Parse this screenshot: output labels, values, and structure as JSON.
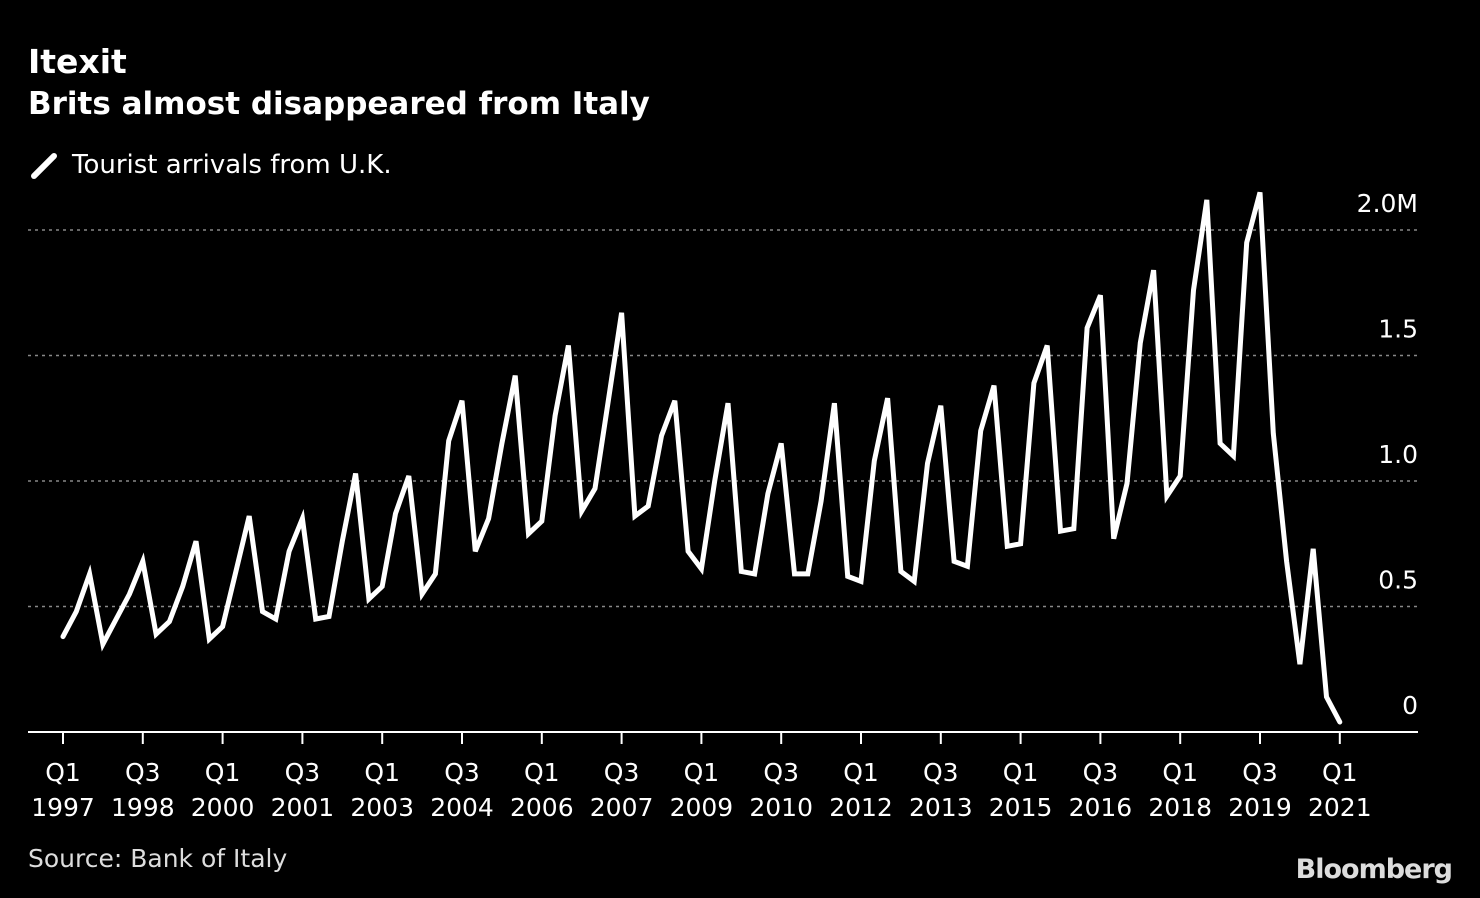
{
  "title": "Itexit",
  "subtitle": "Brits almost disappeared from Italy",
  "source": "Source: Bank of Italy",
  "brand": "Bloomberg",
  "colors": {
    "background": "#000000",
    "line": "#ffffff",
    "grid": "#888888"
  },
  "chart_data": {
    "type": "line",
    "title": "Itexit",
    "subtitle": "Brits almost disappeared from Italy",
    "legend": [
      "Tourist arrivals from U.K."
    ],
    "legend_position": "top-left",
    "xlabel": "",
    "ylabel": "",
    "unit": "M",
    "ylim": [
      0,
      2.0
    ],
    "y_ticks": [
      {
        "value": 2.0,
        "label": "2.0M"
      },
      {
        "value": 1.5,
        "label": "1.5"
      },
      {
        "value": 1.0,
        "label": "1.0"
      },
      {
        "value": 0.5,
        "label": "0.5"
      },
      {
        "value": 0.0,
        "label": "0"
      }
    ],
    "x_start": "1997 Q1",
    "x_ticks": [
      {
        "q": "Q1",
        "year": "1997",
        "index": 0
      },
      {
        "q": "Q3",
        "year": "1998",
        "index": 6
      },
      {
        "q": "Q1",
        "year": "2000",
        "index": 12
      },
      {
        "q": "Q3",
        "year": "2001",
        "index": 18
      },
      {
        "q": "Q1",
        "year": "2003",
        "index": 24
      },
      {
        "q": "Q3",
        "year": "2004",
        "index": 30
      },
      {
        "q": "Q1",
        "year": "2006",
        "index": 36
      },
      {
        "q": "Q3",
        "year": "2007",
        "index": 42
      },
      {
        "q": "Q1",
        "year": "2009",
        "index": 48
      },
      {
        "q": "Q3",
        "year": "2010",
        "index": 54
      },
      {
        "q": "Q1",
        "year": "2012",
        "index": 60
      },
      {
        "q": "Q3",
        "year": "2013",
        "index": 66
      },
      {
        "q": "Q1",
        "year": "2015",
        "index": 72
      },
      {
        "q": "Q3",
        "year": "2016",
        "index": 78
      },
      {
        "q": "Q1",
        "year": "2018",
        "index": 84
      },
      {
        "q": "Q3",
        "year": "2019",
        "index": 90
      },
      {
        "q": "Q1",
        "year": "2021",
        "index": 96
      }
    ],
    "series": [
      {
        "name": "Tourist arrivals from U.K.",
        "values": [
          0.38,
          0.48,
          0.63,
          0.35,
          0.45,
          0.55,
          0.68,
          0.39,
          0.44,
          0.58,
          0.76,
          0.37,
          0.42,
          0.64,
          0.86,
          0.48,
          0.45,
          0.72,
          0.85,
          0.45,
          0.46,
          0.76,
          1.03,
          0.53,
          0.58,
          0.87,
          1.02,
          0.55,
          0.63,
          1.16,
          1.32,
          0.72,
          0.85,
          1.15,
          1.42,
          0.79,
          0.84,
          1.26,
          1.54,
          0.88,
          0.97,
          1.32,
          1.67,
          0.86,
          0.9,
          1.18,
          1.32,
          0.72,
          0.65,
          1.0,
          1.31,
          0.64,
          0.63,
          0.95,
          1.15,
          0.63,
          0.63,
          0.92,
          1.31,
          0.62,
          0.6,
          1.08,
          1.33,
          0.64,
          0.6,
          1.07,
          1.3,
          0.68,
          0.66,
          1.2,
          1.38,
          0.74,
          0.75,
          1.39,
          1.54,
          0.8,
          0.81,
          1.61,
          1.74,
          0.77,
          0.99,
          1.55,
          1.84,
          0.94,
          1.02,
          1.76,
          2.12,
          1.15,
          1.1,
          1.95,
          2.15,
          1.19,
          0.68,
          0.27,
          0.73,
          0.14,
          0.04
        ]
      }
    ]
  }
}
